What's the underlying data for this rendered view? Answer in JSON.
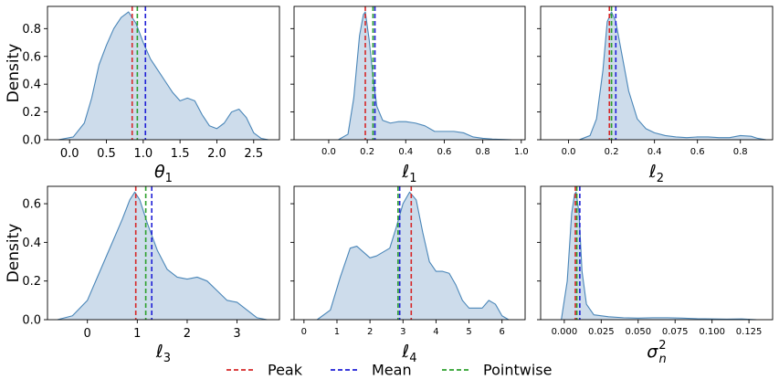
{
  "chart_data": [
    {
      "type": "area",
      "xlabel": "θ",
      "xlabel_sub": "1",
      "ylabel": "Density",
      "xlim": [
        -0.3,
        2.85
      ],
      "ylim": [
        0,
        0.96
      ],
      "xticks": [
        0.0,
        0.5,
        1.0,
        1.5,
        2.0,
        2.5
      ],
      "xtick_labels": [
        "0.0",
        "0.5",
        "1.0",
        "1.5",
        "2.0",
        "2.5"
      ],
      "yticks": [
        0.0,
        0.2,
        0.4,
        0.6,
        0.8
      ],
      "ytick_labels": [
        "0.0",
        "0.2",
        "0.4",
        "0.6",
        "0.8"
      ],
      "tick_fontsize": 13,
      "x": [
        -0.15,
        0.05,
        0.2,
        0.3,
        0.4,
        0.5,
        0.6,
        0.7,
        0.8,
        0.9,
        1.0,
        1.1,
        1.2,
        1.3,
        1.4,
        1.5,
        1.6,
        1.7,
        1.8,
        1.9,
        2.0,
        2.1,
        2.2,
        2.3,
        2.4,
        2.5,
        2.6,
        2.7
      ],
      "y": [
        0.0,
        0.02,
        0.12,
        0.3,
        0.54,
        0.68,
        0.8,
        0.88,
        0.92,
        0.84,
        0.7,
        0.58,
        0.5,
        0.42,
        0.34,
        0.28,
        0.3,
        0.28,
        0.18,
        0.1,
        0.08,
        0.12,
        0.2,
        0.22,
        0.16,
        0.05,
        0.01,
        0.0
      ],
      "vlines": {
        "peak": 0.85,
        "mean": 1.03,
        "pointwise": 0.92
      }
    },
    {
      "type": "area",
      "xlabel": "ℓ",
      "xlabel_sub": "1",
      "ylabel": "",
      "xlim": [
        -0.18,
        1.02
      ],
      "ylim": [
        0,
        0.96
      ],
      "xticks": [
        0.0,
        0.2,
        0.4,
        0.6,
        0.8,
        1.0
      ],
      "xtick_labels": [
        "0.0",
        "0.2",
        "0.4",
        "0.6",
        "0.8",
        "1.0"
      ],
      "yticks": [
        0.0,
        0.2,
        0.4,
        0.6,
        0.8
      ],
      "ytick_labels": [],
      "tick_fontsize": 10,
      "x": [
        0.05,
        0.1,
        0.13,
        0.16,
        0.18,
        0.19,
        0.21,
        0.23,
        0.25,
        0.28,
        0.32,
        0.36,
        0.4,
        0.45,
        0.5,
        0.55,
        0.6,
        0.65,
        0.7,
        0.75,
        0.8,
        0.85,
        0.9,
        0.95
      ],
      "y": [
        0.0,
        0.04,
        0.3,
        0.75,
        0.9,
        0.92,
        0.72,
        0.45,
        0.24,
        0.14,
        0.12,
        0.13,
        0.13,
        0.12,
        0.1,
        0.06,
        0.06,
        0.06,
        0.05,
        0.02,
        0.01,
        0.005,
        0.002,
        0.0
      ],
      "vlines": {
        "peak": 0.19,
        "mean": 0.24,
        "pointwise": 0.23
      }
    },
    {
      "type": "area",
      "xlabel": "ℓ",
      "xlabel_sub": "2",
      "ylabel": "",
      "xlim": [
        -0.13,
        0.95
      ],
      "ylim": [
        0,
        0.96
      ],
      "xticks": [
        0.0,
        0.2,
        0.4,
        0.6,
        0.8
      ],
      "xtick_labels": [
        "0.0",
        "0.2",
        "0.4",
        "0.6",
        "0.8"
      ],
      "yticks": [
        0.0,
        0.2,
        0.4,
        0.6,
        0.8
      ],
      "ytick_labels": [],
      "tick_fontsize": 10,
      "x": [
        0.05,
        0.1,
        0.13,
        0.16,
        0.18,
        0.2,
        0.22,
        0.25,
        0.28,
        0.32,
        0.36,
        0.4,
        0.45,
        0.5,
        0.55,
        0.6,
        0.65,
        0.7,
        0.75,
        0.8,
        0.85,
        0.88,
        0.92
      ],
      "y": [
        0.0,
        0.03,
        0.15,
        0.5,
        0.85,
        0.92,
        0.85,
        0.6,
        0.35,
        0.15,
        0.08,
        0.05,
        0.03,
        0.02,
        0.015,
        0.02,
        0.02,
        0.015,
        0.015,
        0.03,
        0.025,
        0.01,
        0.0
      ],
      "vlines": {
        "peak": 0.19,
        "mean": 0.22,
        "pointwise": 0.2
      }
    },
    {
      "type": "area",
      "xlabel": "ℓ",
      "xlabel_sub": "3",
      "ylabel": "Density",
      "xlim": [
        -0.8,
        3.85
      ],
      "ylim": [
        0,
        0.69
      ],
      "xticks": [
        0,
        1,
        2,
        3
      ],
      "xtick_labels": [
        "0",
        "1",
        "2",
        "3"
      ],
      "yticks": [
        0.0,
        0.2,
        0.4,
        0.6
      ],
      "ytick_labels": [
        "0.0",
        "0.2",
        "0.4",
        "0.6"
      ],
      "tick_fontsize": 13,
      "x": [
        -0.6,
        -0.3,
        0.0,
        0.3,
        0.5,
        0.7,
        0.85,
        0.95,
        1.05,
        1.2,
        1.4,
        1.6,
        1.8,
        2.0,
        2.2,
        2.4,
        2.6,
        2.8,
        3.0,
        3.2,
        3.4,
        3.6
      ],
      "y": [
        0.0,
        0.02,
        0.1,
        0.28,
        0.4,
        0.52,
        0.62,
        0.66,
        0.62,
        0.5,
        0.36,
        0.26,
        0.22,
        0.21,
        0.22,
        0.2,
        0.15,
        0.1,
        0.09,
        0.05,
        0.01,
        0.0
      ],
      "vlines": {
        "peak": 0.97,
        "mean": 1.29,
        "pointwise": 1.17
      }
    },
    {
      "type": "area",
      "xlabel": "ℓ",
      "xlabel_sub": "4",
      "ylabel": "",
      "xlim": [
        -0.3,
        6.7
      ],
      "ylim": [
        0,
        0.69
      ],
      "xticks": [
        0,
        1,
        2,
        3,
        4,
        5,
        6
      ],
      "xtick_labels": [
        "0",
        "1",
        "2",
        "3",
        "4",
        "5",
        "6"
      ],
      "yticks": [
        0.0,
        0.2,
        0.4,
        0.6
      ],
      "ytick_labels": [],
      "tick_fontsize": 10,
      "x": [
        0.4,
        0.8,
        1.1,
        1.4,
        1.6,
        1.8,
        2.0,
        2.2,
        2.4,
        2.6,
        2.8,
        3.0,
        3.2,
        3.4,
        3.6,
        3.8,
        4.0,
        4.2,
        4.4,
        4.6,
        4.8,
        5.0,
        5.2,
        5.4,
        5.6,
        5.8,
        6.0,
        6.2
      ],
      "y": [
        0.0,
        0.05,
        0.22,
        0.37,
        0.38,
        0.35,
        0.32,
        0.33,
        0.35,
        0.37,
        0.48,
        0.6,
        0.66,
        0.62,
        0.45,
        0.3,
        0.25,
        0.25,
        0.24,
        0.18,
        0.1,
        0.06,
        0.06,
        0.06,
        0.1,
        0.08,
        0.02,
        0.0
      ],
      "vlines": {
        "peak": 3.25,
        "mean": 2.9,
        "pointwise": 2.85
      }
    },
    {
      "type": "area",
      "xlabel": "σ",
      "xlabel_sub": "n",
      "xlabel_sup": "2",
      "ylabel": "",
      "xlim": [
        -0.016,
        0.141
      ],
      "ylim": [
        0,
        0.69
      ],
      "xticks": [
        0.0,
        0.025,
        0.05,
        0.075,
        0.1,
        0.125
      ],
      "xtick_labels": [
        "0.000",
        "0.025",
        "0.050",
        "0.075",
        "0.100",
        "0.125"
      ],
      "yticks": [
        0.0,
        0.2,
        0.4,
        0.6
      ],
      "ytick_labels": [],
      "tick_fontsize": 10,
      "x": [
        -0.002,
        0.002,
        0.005,
        0.007,
        0.008,
        0.01,
        0.012,
        0.015,
        0.02,
        0.03,
        0.04,
        0.05,
        0.06,
        0.07,
        0.08,
        0.09,
        0.1,
        0.11,
        0.12,
        0.13
      ],
      "y": [
        0.0,
        0.2,
        0.55,
        0.65,
        0.66,
        0.55,
        0.25,
        0.08,
        0.025,
        0.015,
        0.01,
        0.008,
        0.01,
        0.01,
        0.008,
        0.005,
        0.004,
        0.003,
        0.004,
        0.0
      ],
      "vlines": {
        "peak": 0.0075,
        "mean": 0.0105,
        "pointwise": 0.0085
      }
    }
  ],
  "legend": {
    "placement": "bottom-center",
    "entries": [
      {
        "key": "peak",
        "label": "Peak",
        "color": "#d62728"
      },
      {
        "key": "mean",
        "label": "Mean",
        "color": "#1f1fd6"
      },
      {
        "key": "pointwise",
        "label": "Pointwise",
        "color": "#2ca02c"
      }
    ]
  },
  "colors": {
    "fill": "#cddceb",
    "stroke": "#4a86b8",
    "axis": "#000000"
  }
}
